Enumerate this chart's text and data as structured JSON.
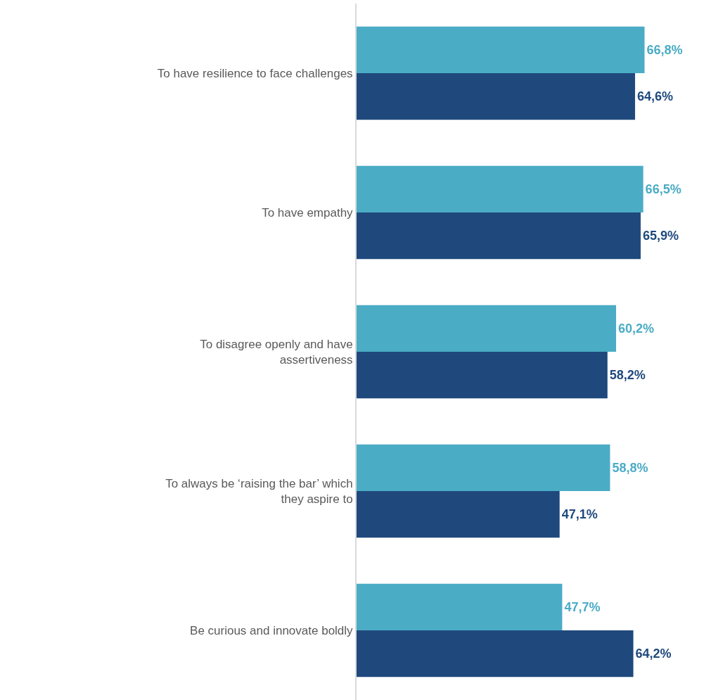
{
  "chart_data": {
    "type": "bar",
    "orientation": "horizontal",
    "categories": [
      "To have resilience to face challenges",
      "To have empathy",
      "To disagree openly and have assertiveness",
      "To always be ‘raising the bar’ which they aspire to",
      "Be curious and innovate boldly"
    ],
    "series": [
      {
        "color": "#4bacc6",
        "values": [
          66.8,
          66.5,
          60.2,
          58.8,
          47.7
        ],
        "value_labels": [
          "66,8%",
          "66,5%",
          "60,2%",
          "58,8%",
          "47,7%"
        ]
      },
      {
        "color": "#1f497d",
        "values": [
          64.6,
          65.9,
          58.2,
          47.1,
          64.2
        ],
        "value_labels": [
          "64,6%",
          "65,9%",
          "58,2%",
          "47,1%",
          "64,2%"
        ]
      }
    ],
    "tick_labels": "y",
    "legend": false
  }
}
